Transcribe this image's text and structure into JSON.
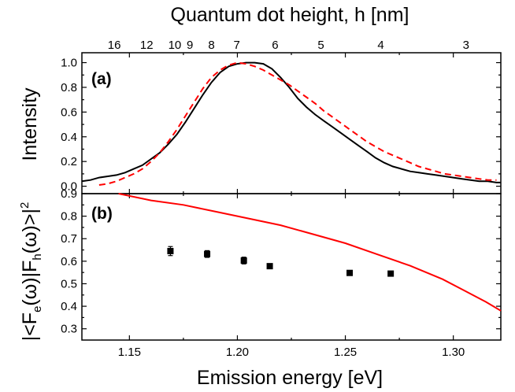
{
  "figure": {
    "top_axis_title": "Quantum dot height, h [nm]",
    "x_axis_title": "Emission energy [eV]",
    "top_axis_ticks": [
      "16",
      "12",
      "10",
      "9",
      "8",
      "7",
      "6",
      "5",
      "4",
      "3"
    ]
  },
  "chart_data": [
    {
      "type": "line",
      "panel_label": "(a)",
      "ylabel": "Intensity",
      "xlim": [
        1.128,
        1.322
      ],
      "ylim": [
        -0.06,
        1.08
      ],
      "x_ticks": [
        1.15,
        1.2,
        1.25,
        1.3
      ],
      "x_tick_labels": [],
      "y_ticks": [
        0.0,
        0.2,
        0.4,
        0.6,
        0.8,
        1.0
      ],
      "y_tick_labels": [
        "0.0",
        "0.2",
        "0.4",
        "0.6",
        "0.8",
        "1.0"
      ],
      "top_axis": {
        "labels": [
          "16",
          "12",
          "10",
          "9",
          "8",
          "7",
          "6",
          "5",
          "4",
          "3"
        ],
        "energy_positions": [
          1.143,
          1.158,
          1.171,
          1.178,
          1.188,
          1.1997,
          1.2175,
          1.2387,
          1.2664,
          1.3059
        ]
      },
      "series": [
        {
          "name": "",
          "color": "#000000",
          "style": "solid",
          "x": [
            1.128,
            1.132,
            1.136,
            1.14,
            1.144,
            1.148,
            1.152,
            1.156,
            1.16,
            1.164,
            1.168,
            1.172,
            1.176,
            1.18,
            1.184,
            1.188,
            1.192,
            1.196,
            1.2,
            1.204,
            1.208,
            1.212,
            1.216,
            1.22,
            1.224,
            1.228,
            1.232,
            1.236,
            1.24,
            1.244,
            1.248,
            1.252,
            1.256,
            1.26,
            1.264,
            1.268,
            1.272,
            1.276,
            1.28,
            1.284,
            1.288,
            1.292,
            1.296,
            1.3,
            1.304,
            1.308,
            1.312,
            1.316,
            1.32,
            1.322
          ],
          "y": [
            0.04,
            0.05,
            0.07,
            0.08,
            0.09,
            0.11,
            0.14,
            0.17,
            0.22,
            0.27,
            0.34,
            0.42,
            0.52,
            0.63,
            0.74,
            0.84,
            0.92,
            0.97,
            0.99,
            1.0,
            1.0,
            0.99,
            0.95,
            0.88,
            0.8,
            0.71,
            0.64,
            0.58,
            0.53,
            0.48,
            0.43,
            0.38,
            0.33,
            0.28,
            0.23,
            0.19,
            0.16,
            0.14,
            0.12,
            0.11,
            0.1,
            0.09,
            0.08,
            0.07,
            0.06,
            0.05,
            0.04,
            0.04,
            0.03,
            0.03
          ]
        },
        {
          "name": "",
          "color": "#ff0000",
          "style": "dashed",
          "x": [
            1.136,
            1.14,
            1.144,
            1.148,
            1.152,
            1.156,
            1.16,
            1.164,
            1.168,
            1.172,
            1.176,
            1.18,
            1.184,
            1.188,
            1.192,
            1.196,
            1.2,
            1.204,
            1.208,
            1.212,
            1.216,
            1.22,
            1.224,
            1.228,
            1.232,
            1.236,
            1.24,
            1.244,
            1.248,
            1.252,
            1.256,
            1.26,
            1.264,
            1.268,
            1.272,
            1.276,
            1.28,
            1.284,
            1.288,
            1.292,
            1.296,
            1.3,
            1.304,
            1.308,
            1.312,
            1.316,
            1.32
          ],
          "y": [
            0.01,
            0.02,
            0.04,
            0.07,
            0.1,
            0.14,
            0.2,
            0.27,
            0.36,
            0.46,
            0.57,
            0.68,
            0.79,
            0.88,
            0.94,
            0.98,
            1.0,
            0.99,
            0.97,
            0.94,
            0.9,
            0.86,
            0.82,
            0.77,
            0.72,
            0.67,
            0.61,
            0.56,
            0.51,
            0.46,
            0.41,
            0.36,
            0.32,
            0.28,
            0.25,
            0.22,
            0.19,
            0.16,
            0.14,
            0.12,
            0.1,
            0.09,
            0.08,
            0.07,
            0.06,
            0.05,
            0.05
          ]
        }
      ]
    },
    {
      "type": "scatter",
      "panel_label": "(b)",
      "ylabel": "|<Fe(ω)|Fh(ω)>|²",
      "xlim": [
        1.128,
        1.322
      ],
      "ylim": [
        0.25,
        0.9
      ],
      "x_ticks": [
        1.15,
        1.2,
        1.25,
        1.3
      ],
      "x_tick_labels": [
        "1.15",
        "1.20",
        "1.25",
        "1.30"
      ],
      "y_ticks": [
        0.3,
        0.4,
        0.5,
        0.6,
        0.7,
        0.8,
        0.9
      ],
      "y_tick_labels": [
        "0.3",
        "0.4",
        "0.5",
        "0.6",
        "0.7",
        "0.8",
        "0.9"
      ],
      "series": [
        {
          "name": "",
          "type": "line",
          "color": "#ff0000",
          "x": [
            1.145,
            1.16,
            1.175,
            1.19,
            1.205,
            1.22,
            1.235,
            1.25,
            1.265,
            1.28,
            1.295,
            1.305,
            1.315,
            1.322
          ],
          "y": [
            0.9,
            0.87,
            0.85,
            0.82,
            0.79,
            0.76,
            0.72,
            0.68,
            0.63,
            0.58,
            0.52,
            0.47,
            0.42,
            0.38
          ]
        },
        {
          "name": "",
          "type": "scatter",
          "color": "#000000",
          "x": [
            1.169,
            1.186,
            1.203,
            1.215,
            1.252,
            1.271
          ],
          "y": [
            0.645,
            0.632,
            0.603,
            0.578,
            0.548,
            0.545
          ],
          "err": [
            0.02,
            0.015,
            0.015,
            0.01,
            0.01,
            0.01
          ]
        }
      ]
    }
  ]
}
